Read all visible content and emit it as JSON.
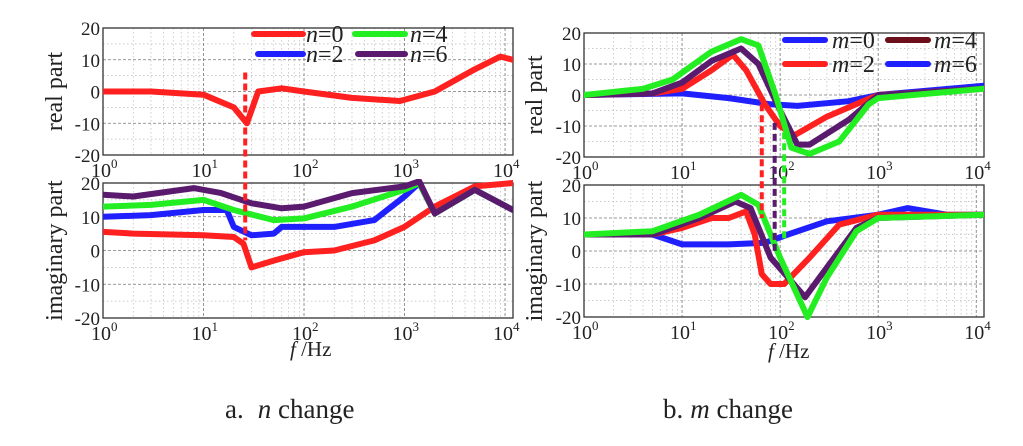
{
  "chart_data": [
    {
      "type": "line",
      "caption_prefix": "a.",
      "caption_var": "n",
      "caption_rest": " change",
      "xlabel_var": "f",
      "xlabel_unit": " /Hz",
      "x_scale": "log",
      "xlim": [
        1,
        12000
      ],
      "x_ticks": [
        "0",
        "1",
        "2",
        "3",
        "4"
      ],
      "grid": true,
      "legend_placement": "top-right",
      "legend": [
        {
          "var": "n",
          "label": "=0",
          "color": "#ff2020"
        },
        {
          "var": "n",
          "label": "=4",
          "color": "#22ee22"
        },
        {
          "var": "n",
          "label": "=2",
          "color": "#2020ff"
        },
        {
          "var": "n",
          "label": "=6",
          "color": "#5a1a6e"
        }
      ],
      "subplots": [
        {
          "ylabel": "real part",
          "ylim": [
            -20,
            20
          ],
          "y_ticks": [
            "20",
            "10",
            "0",
            "-10",
            "-20"
          ],
          "series": [
            {
              "color": "#ff2020",
              "points": [
                [
                  1,
                  0
                ],
                [
                  3,
                  0
                ],
                [
                  10,
                  -1
                ],
                [
                  20,
                  -5
                ],
                [
                  27,
                  -10
                ],
                [
                  35,
                  0
                ],
                [
                  60,
                  1
                ],
                [
                  100,
                  0
                ],
                [
                  300,
                  -2
                ],
                [
                  900,
                  -3
                ],
                [
                  2000,
                  0
                ],
                [
                  5000,
                  7
                ],
                [
                  9000,
                  11
                ],
                [
                  12000,
                  10
                ]
              ]
            }
          ]
        },
        {
          "ylabel": "imaginary part",
          "ylim": [
            -20,
            20
          ],
          "y_ticks": [
            "20",
            "10",
            "0",
            "-10",
            "-20"
          ],
          "series": [
            {
              "color": "#ff2020",
              "points": [
                [
                  1,
                  5.5
                ],
                [
                  2,
                  5
                ],
                [
                  10,
                  4.5
                ],
                [
                  20,
                  4
                ],
                [
                  25,
                  2
                ],
                [
                  30,
                  -5
                ],
                [
                  50,
                  -3
                ],
                [
                  100,
                  -0.5
                ],
                [
                  200,
                  0
                ],
                [
                  500,
                  3
                ],
                [
                  1000,
                  7
                ],
                [
                  2000,
                  13
                ],
                [
                  5000,
                  19
                ],
                [
                  12000,
                  20
                ]
              ]
            },
            {
              "color": "#2020ff",
              "points": [
                [
                  1,
                  10
                ],
                [
                  3,
                  10.5
                ],
                [
                  10,
                  12
                ],
                [
                  17,
                  12
                ],
                [
                  20,
                  7
                ],
                [
                  30,
                  4.5
                ],
                [
                  50,
                  5
                ],
                [
                  60,
                  7
                ],
                [
                  200,
                  7
                ],
                [
                  500,
                  9
                ],
                [
                  1000,
                  16
                ],
                [
                  1400,
                  20
                ],
                [
                  2000,
                  11
                ],
                [
                  5000,
                  18
                ],
                [
                  12000,
                  12
                ]
              ]
            },
            {
              "color": "#22ee22",
              "points": [
                [
                  1,
                  13
                ],
                [
                  3,
                  13.5
                ],
                [
                  10,
                  15
                ],
                [
                  20,
                  12
                ],
                [
                  50,
                  9
                ],
                [
                  100,
                  9.5
                ],
                [
                  300,
                  13
                ],
                [
                  1000,
                  18
                ],
                [
                  1400,
                  20
                ],
                [
                  2000,
                  11
                ],
                [
                  5000,
                  18
                ],
                [
                  12000,
                  12
                ]
              ]
            },
            {
              "color": "#5a1a6e",
              "points": [
                [
                  1,
                  16.5
                ],
                [
                  2,
                  16
                ],
                [
                  8,
                  18.5
                ],
                [
                  15,
                  17
                ],
                [
                  30,
                  14
                ],
                [
                  60,
                  12.5
                ],
                [
                  100,
                  13
                ],
                [
                  300,
                  17
                ],
                [
                  1000,
                  19
                ],
                [
                  1400,
                  20.5
                ],
                [
                  2000,
                  11
                ],
                [
                  5000,
                  18
                ],
                [
                  12000,
                  12
                ]
              ]
            }
          ]
        }
      ],
      "markers": [
        {
          "color": "#ff2020",
          "f": 26,
          "from_real": 6,
          "to_imag": 3
        }
      ]
    },
    {
      "type": "line",
      "caption_prefix": "b.",
      "caption_var": "m",
      "caption_rest": " change",
      "xlabel_var": "f",
      "xlabel_unit": " /Hz",
      "x_scale": "log",
      "xlim": [
        1,
        12000
      ],
      "x_ticks": [
        "0",
        "1",
        "2",
        "3",
        "4"
      ],
      "grid": true,
      "legend_placement": "top-right",
      "legend": [
        {
          "var": "m",
          "label": "=0",
          "color": "#2020ff"
        },
        {
          "var": "m",
          "label": "=4",
          "color": "#6b0f1a"
        },
        {
          "var": "m",
          "label": "=2",
          "color": "#ff2020"
        },
        {
          "var": "m",
          "label": "=6",
          "color": "#2020ff"
        }
      ],
      "subplots": [
        {
          "ylabel": "real part",
          "ylim": [
            -20,
            20
          ],
          "y_ticks": [
            "20",
            "10",
            "0",
            "-10",
            "-20"
          ],
          "series": [
            {
              "color": "#2020ff",
              "points": [
                [
                  1,
                  0
                ],
                [
                  10,
                  0.5
                ],
                [
                  30,
                  -1
                ],
                [
                  80,
                  -3
                ],
                [
                  150,
                  -3.5
                ],
                [
                  500,
                  -2
                ],
                [
                  1000,
                  0
                ],
                [
                  12000,
                  3
                ]
              ]
            },
            {
              "color": "#ff2020",
              "points": [
                [
                  1,
                  0
                ],
                [
                  5,
                  0.5
                ],
                [
                  10,
                  2
                ],
                [
                  20,
                  8
                ],
                [
                  33,
                  13
                ],
                [
                  45,
                  8
                ],
                [
                  70,
                  -3
                ],
                [
                  100,
                  -10
                ],
                [
                  140,
                  -13
                ],
                [
                  300,
                  -7
                ],
                [
                  700,
                  -2
                ],
                [
                  1000,
                  0
                ],
                [
                  12000,
                  2
                ]
              ]
            },
            {
              "color": "#5a1a6e",
              "points": [
                [
                  1,
                  0
                ],
                [
                  5,
                  0.5
                ],
                [
                  10,
                  4
                ],
                [
                  20,
                  11
                ],
                [
                  40,
                  15
                ],
                [
                  60,
                  10
                ],
                [
                  100,
                  -5
                ],
                [
                  150,
                  -16
                ],
                [
                  200,
                  -16
                ],
                [
                  500,
                  -8
                ],
                [
                  1000,
                  0
                ],
                [
                  12000,
                  2
                ]
              ]
            },
            {
              "color": "#22ee22",
              "points": [
                [
                  1,
                  0
                ],
                [
                  4,
                  2
                ],
                [
                  8,
                  5
                ],
                [
                  20,
                  14
                ],
                [
                  40,
                  18
                ],
                [
                  60,
                  16
                ],
                [
                  90,
                  0
                ],
                [
                  130,
                  -17
                ],
                [
                  200,
                  -19
                ],
                [
                  400,
                  -15
                ],
                [
                  800,
                  -3
                ],
                [
                  1000,
                  -1
                ],
                [
                  12000,
                  2
                ]
              ]
            }
          ]
        },
        {
          "ylabel": "imaginary part",
          "ylim": [
            -20,
            20
          ],
          "y_ticks": [
            "20",
            "10",
            "0",
            "-10",
            "-20"
          ],
          "series": [
            {
              "color": "#2020ff",
              "points": [
                [
                  1,
                  5
                ],
                [
                  5,
                  5
                ],
                [
                  10,
                  2
                ],
                [
                  30,
                  2
                ],
                [
                  70,
                  2.5
                ],
                [
                  120,
                  5
                ],
                [
                  300,
                  9
                ],
                [
                  1000,
                  11
                ],
                [
                  2000,
                  13
                ],
                [
                  5000,
                  11
                ],
                [
                  12000,
                  11
                ]
              ]
            },
            {
              "color": "#ff2020",
              "points": [
                [
                  1,
                  5
                ],
                [
                  5,
                  5
                ],
                [
                  10,
                  7
                ],
                [
                  20,
                  10
                ],
                [
                  30,
                  10
                ],
                [
                  45,
                  12
                ],
                [
                  55,
                  5
                ],
                [
                  65,
                  -7
                ],
                [
                  80,
                  -10
                ],
                [
                  110,
                  -10
                ],
                [
                  200,
                  -2
                ],
                [
                  400,
                  8
                ],
                [
                  1000,
                  11
                ],
                [
                  12000,
                  11
                ]
              ]
            },
            {
              "color": "#5a1a6e",
              "points": [
                [
                  1,
                  5
                ],
                [
                  5,
                  5
                ],
                [
                  15,
                  10
                ],
                [
                  35,
                  15
                ],
                [
                  50,
                  13
                ],
                [
                  80,
                  -2
                ],
                [
                  120,
                  -8
                ],
                [
                  180,
                  -14
                ],
                [
                  300,
                  -5
                ],
                [
                  600,
                  7
                ],
                [
                  1000,
                  10
                ],
                [
                  12000,
                  11
                ]
              ]
            },
            {
              "color": "#22ee22",
              "points": [
                [
                  1,
                  5
                ],
                [
                  5,
                  6
                ],
                [
                  15,
                  11
                ],
                [
                  40,
                  17
                ],
                [
                  60,
                  14
                ],
                [
                  100,
                  -2
                ],
                [
                  190,
                  -20
                ],
                [
                  300,
                  -8
                ],
                [
                  600,
                  6
                ],
                [
                  1000,
                  10
                ],
                [
                  12000,
                  11
                ]
              ]
            }
          ]
        }
      ],
      "markers": [
        {
          "color": "#ff2020",
          "f": 65,
          "from_real": -3,
          "to_imag": 10
        },
        {
          "color": "#5a1a6e",
          "f": 88,
          "from_real": -9,
          "to_imag": 0
        },
        {
          "color": "#22ee22",
          "f": 110,
          "from_real": -12,
          "to_imag": 3
        }
      ]
    }
  ]
}
